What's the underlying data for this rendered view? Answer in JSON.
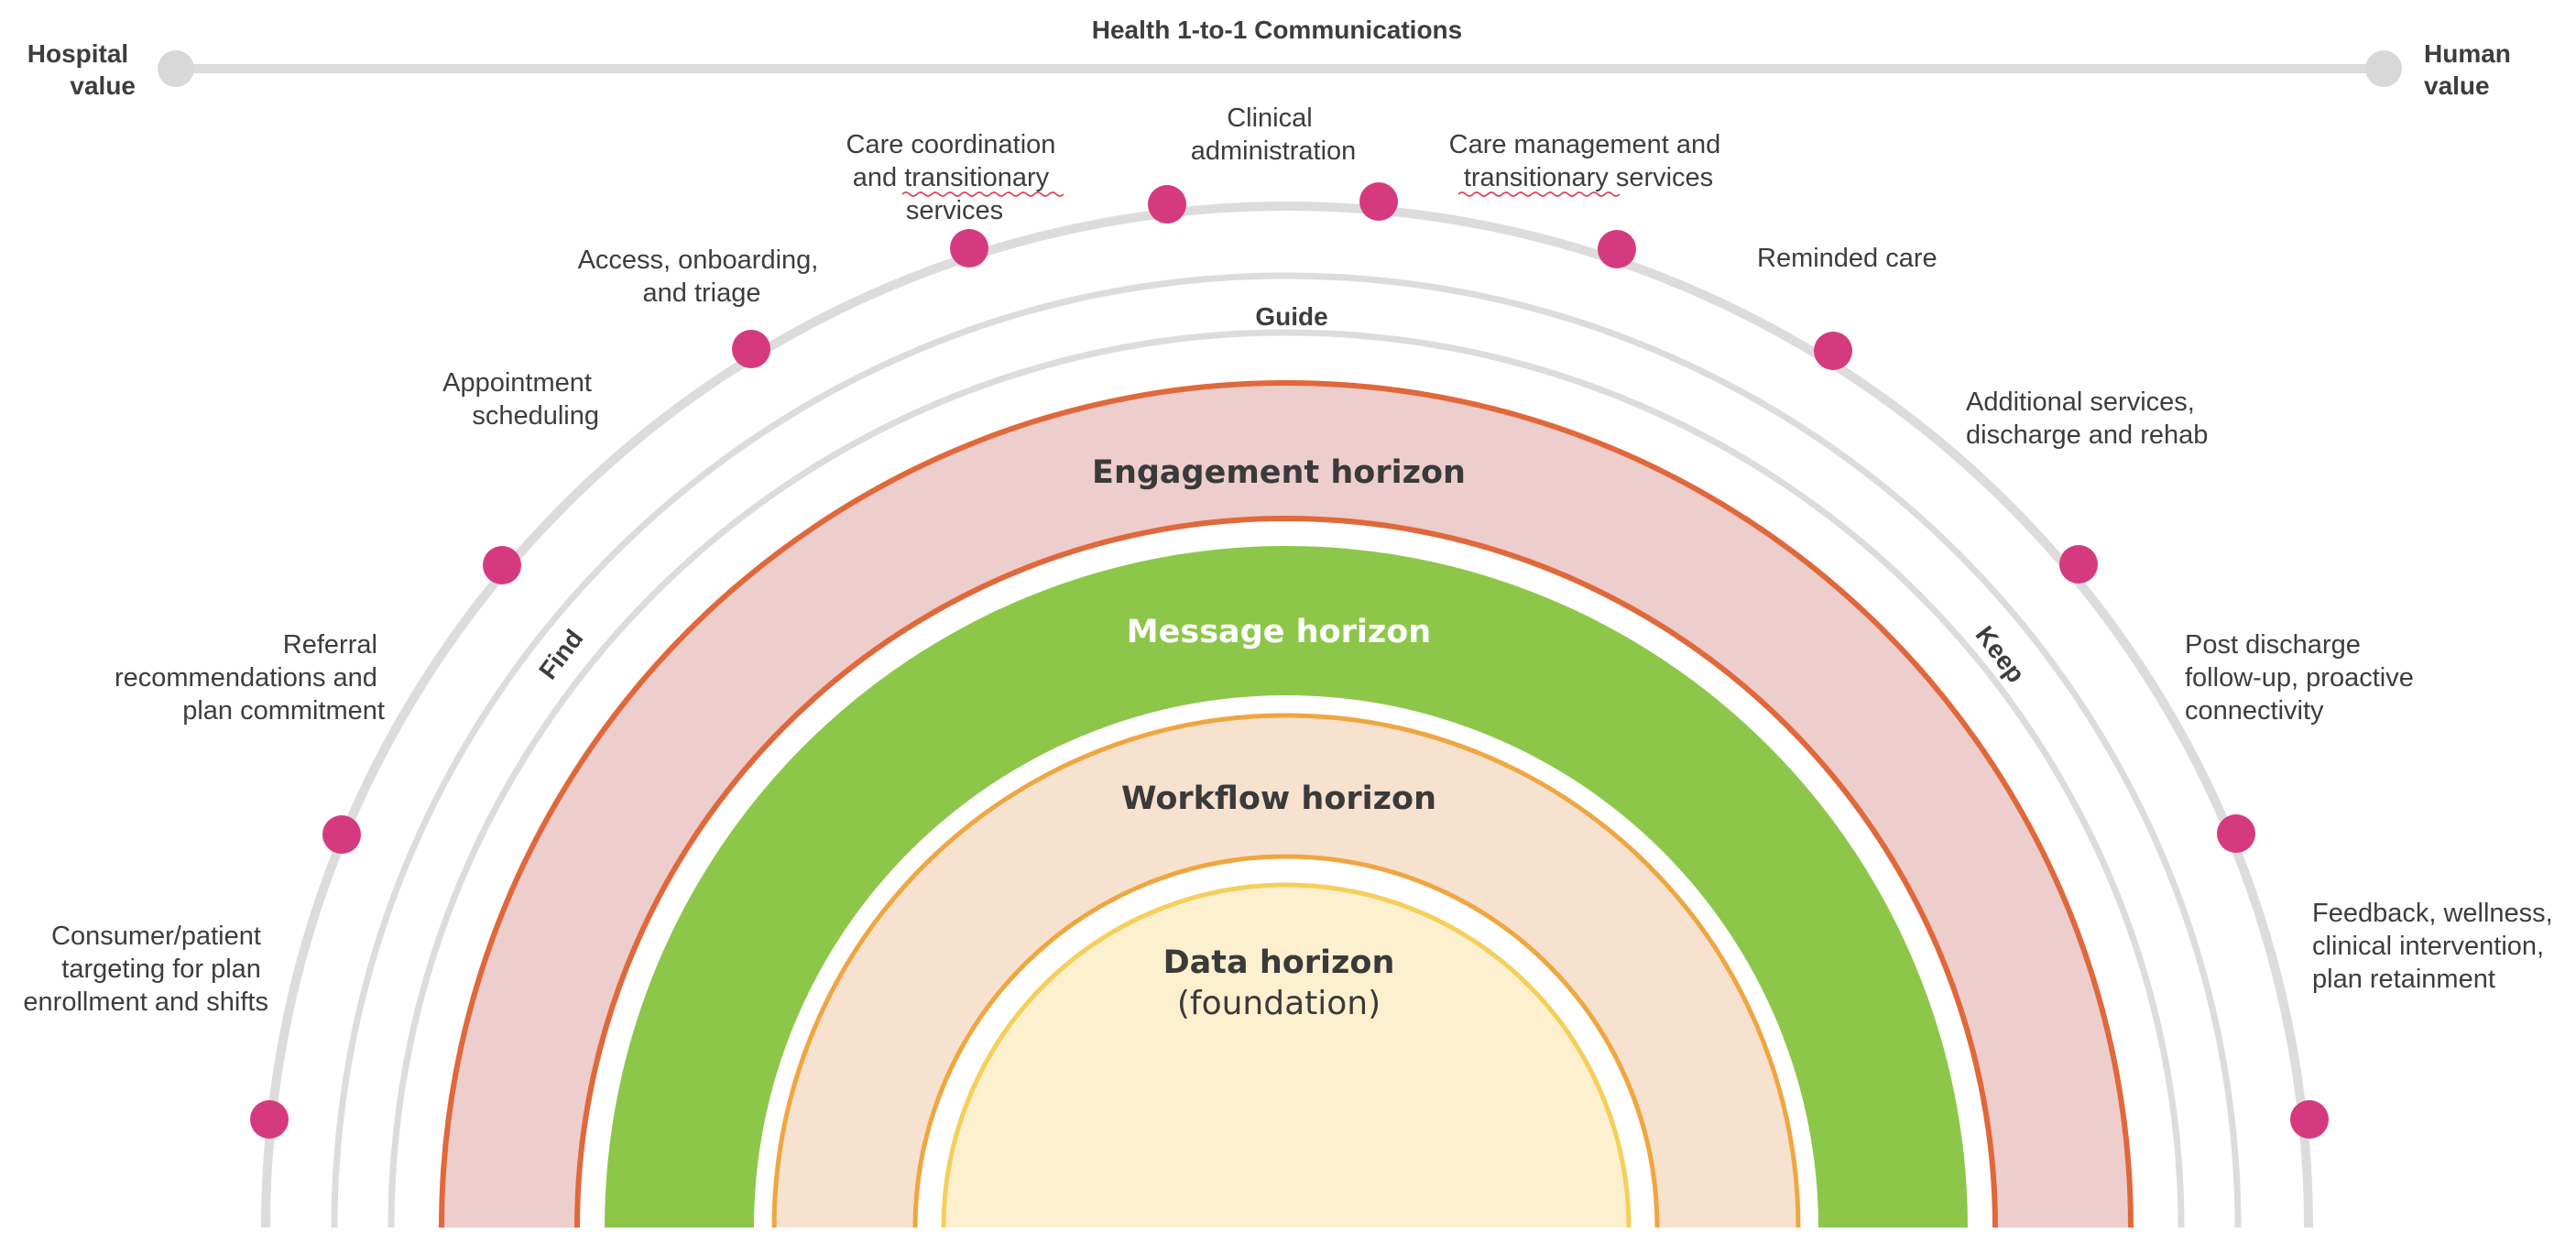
{
  "top_bar": {
    "title": "Health 1-to-1 Communications",
    "left_label": [
      "Hospital",
      "value"
    ],
    "right_label": [
      "Human",
      "value"
    ]
  },
  "arc_labels": {
    "guide": "Guide",
    "find": "Find",
    "keep": "Keep"
  },
  "touchpoints": [
    {
      "lines": [
        "Consumer/patient",
        "targeting for plan",
        "enrollment and shifts"
      ]
    },
    {
      "lines": [
        "Referral",
        "recommendations and",
        "plan commitment"
      ]
    },
    {
      "lines": [
        "Appointment",
        "scheduling"
      ]
    },
    {
      "lines": [
        "Access, onboarding,",
        "and triage"
      ]
    },
    {
      "lines": [
        "Care coordination",
        "and transitionary",
        "services"
      ]
    },
    {
      "lines": [
        "Clinical",
        "administration"
      ]
    },
    {
      "lines": [
        "Care management and",
        "transitionary services"
      ]
    },
    {
      "lines": [
        "Reminded care"
      ]
    },
    {
      "lines": [
        "Additional services,",
        "discharge and rehab"
      ]
    },
    {
      "lines": [
        "Post discharge",
        "follow-up, proactive",
        "connectivity"
      ]
    },
    {
      "lines": [
        "Feedback, wellness,",
        "clinical intervention,",
        "plan retainment"
      ]
    }
  ],
  "horizons": {
    "engagement": "Engagement horizon",
    "message": "Message horizon",
    "workflow": "Workflow horizon",
    "data": "Data horizon",
    "data_sub": "(foundation)"
  },
  "colors": {
    "dot": "#d63a7e",
    "track": "#dcdcdc",
    "engagement_fill": "#eecdcd",
    "engagement_stroke": "#e0683a",
    "message_fill": "#8dc74a",
    "workflow_fill": "#f7e2cf",
    "workflow_stroke": "#f0a640",
    "data_fill": "#fdf0cf",
    "data_stroke": "#f6cf5a"
  }
}
